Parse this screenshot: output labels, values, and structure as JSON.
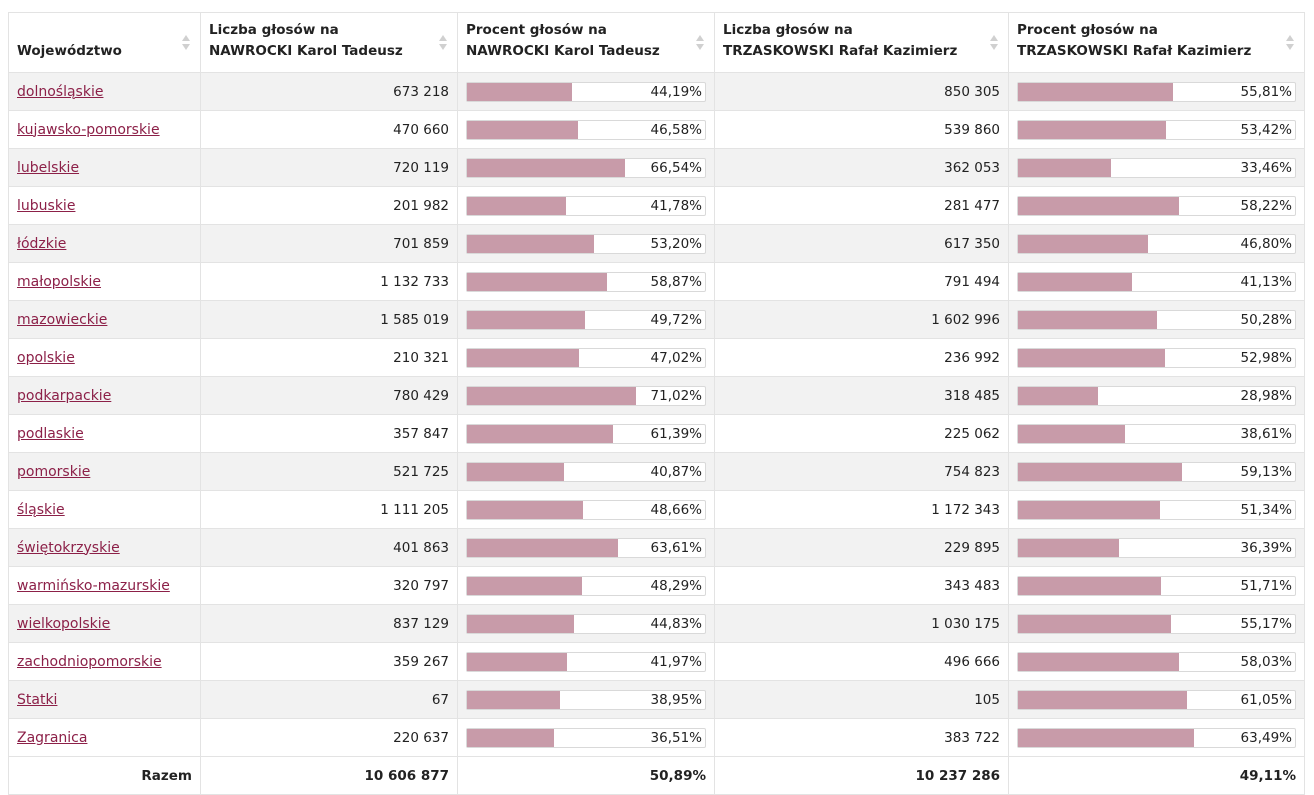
{
  "table": {
    "headers": [
      {
        "line1": "Województwo",
        "line2": ""
      },
      {
        "line1": "Liczba głosów na",
        "line2": "NAWROCKI Karol Tadeusz"
      },
      {
        "line1": "Procent głosów na",
        "line2": "NAWROCKI Karol Tadeusz"
      },
      {
        "line1": "Liczba głosów na",
        "line2": "TRZASKOWSKI Rafał Kazimierz"
      },
      {
        "line1": "Procent głosów na",
        "line2": "TRZASKOWSKI Rafał Kazimierz"
      }
    ],
    "rows": [
      {
        "region": "dolnośląskie",
        "n_votes": "673 218",
        "n_pct": "44,19%",
        "n_frac": 0.4419,
        "t_votes": "850 305",
        "t_pct": "55,81%",
        "t_frac": 0.5581
      },
      {
        "region": "kujawsko-pomorskie",
        "n_votes": "470 660",
        "n_pct": "46,58%",
        "n_frac": 0.4658,
        "t_votes": "539 860",
        "t_pct": "53,42%",
        "t_frac": 0.5342
      },
      {
        "region": "lubelskie",
        "n_votes": "720 119",
        "n_pct": "66,54%",
        "n_frac": 0.6654,
        "t_votes": "362 053",
        "t_pct": "33,46%",
        "t_frac": 0.3346
      },
      {
        "region": "lubuskie",
        "n_votes": "201 982",
        "n_pct": "41,78%",
        "n_frac": 0.4178,
        "t_votes": "281 477",
        "t_pct": "58,22%",
        "t_frac": 0.5822
      },
      {
        "region": "łódzkie",
        "n_votes": "701 859",
        "n_pct": "53,20%",
        "n_frac": 0.532,
        "t_votes": "617 350",
        "t_pct": "46,80%",
        "t_frac": 0.468
      },
      {
        "region": "małopolskie",
        "n_votes": "1 132 733",
        "n_pct": "58,87%",
        "n_frac": 0.5887,
        "t_votes": "791 494",
        "t_pct": "41,13%",
        "t_frac": 0.4113
      },
      {
        "region": "mazowieckie",
        "n_votes": "1 585 019",
        "n_pct": "49,72%",
        "n_frac": 0.4972,
        "t_votes": "1 602 996",
        "t_pct": "50,28%",
        "t_frac": 0.5028
      },
      {
        "region": "opolskie",
        "n_votes": "210 321",
        "n_pct": "47,02%",
        "n_frac": 0.4702,
        "t_votes": "236 992",
        "t_pct": "52,98%",
        "t_frac": 0.5298
      },
      {
        "region": "podkarpackie",
        "n_votes": "780 429",
        "n_pct": "71,02%",
        "n_frac": 0.7102,
        "t_votes": "318 485",
        "t_pct": "28,98%",
        "t_frac": 0.2898
      },
      {
        "region": "podlaskie",
        "n_votes": "357 847",
        "n_pct": "61,39%",
        "n_frac": 0.6139,
        "t_votes": "225 062",
        "t_pct": "38,61%",
        "t_frac": 0.3861
      },
      {
        "region": "pomorskie",
        "n_votes": "521 725",
        "n_pct": "40,87%",
        "n_frac": 0.4087,
        "t_votes": "754 823",
        "t_pct": "59,13%",
        "t_frac": 0.5913
      },
      {
        "region": "śląskie",
        "n_votes": "1 111 205",
        "n_pct": "48,66%",
        "n_frac": 0.4866,
        "t_votes": "1 172 343",
        "t_pct": "51,34%",
        "t_frac": 0.5134
      },
      {
        "region": "świętokrzyskie",
        "n_votes": "401 863",
        "n_pct": "63,61%",
        "n_frac": 0.6361,
        "t_votes": "229 895",
        "t_pct": "36,39%",
        "t_frac": 0.3639
      },
      {
        "region": "warmińsko-mazurskie",
        "n_votes": "320 797",
        "n_pct": "48,29%",
        "n_frac": 0.4829,
        "t_votes": "343 483",
        "t_pct": "51,71%",
        "t_frac": 0.5171
      },
      {
        "region": "wielkopolskie",
        "n_votes": "837 129",
        "n_pct": "44,83%",
        "n_frac": 0.4483,
        "t_votes": "1 030 175",
        "t_pct": "55,17%",
        "t_frac": 0.5517
      },
      {
        "region": "zachodniopomorskie",
        "n_votes": "359 267",
        "n_pct": "41,97%",
        "n_frac": 0.4197,
        "t_votes": "496 666",
        "t_pct": "58,03%",
        "t_frac": 0.5803
      },
      {
        "region": "Statki",
        "n_votes": "67",
        "n_pct": "38,95%",
        "n_frac": 0.3895,
        "t_votes": "105",
        "t_pct": "61,05%",
        "t_frac": 0.6105
      },
      {
        "region": "Zagranica",
        "n_votes": "220 637",
        "n_pct": "36,51%",
        "n_frac": 0.3651,
        "t_votes": "383 722",
        "t_pct": "63,49%",
        "t_frac": 0.6349
      }
    ],
    "footer": {
      "label": "Razem",
      "n_votes": "10 606 877",
      "n_pct": "50,89%",
      "t_votes": "10 237 286",
      "t_pct": "49,11%"
    }
  },
  "colors": {
    "bar_fill": "#c89ba9",
    "link": "#8c2048",
    "row_alt": "#f2f2f2"
  },
  "icons": {
    "sort": "sort-icon"
  }
}
